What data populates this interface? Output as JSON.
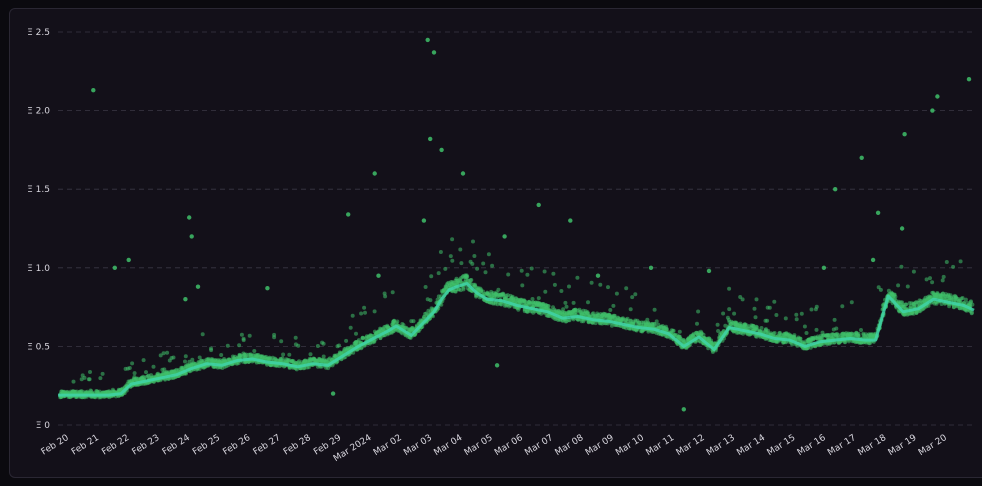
{
  "chart_data": {
    "type": "scatter",
    "title": "",
    "xlabel": "",
    "ylabel": "",
    "y_tick_labels": [
      "Ξ 0",
      "Ξ 0.5",
      "Ξ 1.0",
      "Ξ 1.5",
      "Ξ 2.0",
      "Ξ 2.5"
    ],
    "y_ticks": [
      0,
      0.5,
      1.0,
      1.5,
      2.0,
      2.5
    ],
    "ylim": [
      0,
      2.5
    ],
    "x_tick_labels": [
      "Feb 20",
      "Feb 21",
      "Feb 22",
      "Feb 23",
      "Feb 24",
      "Feb 25",
      "Feb 26",
      "Feb 27",
      "Feb 28",
      "Feb 29",
      "Mar 2024",
      "Mar 02",
      "Mar 03",
      "Mar 04",
      "Mar 05",
      "Mar 06",
      "Mar 07",
      "Mar 08",
      "Mar 09",
      "Mar 10",
      "Mar 11",
      "Mar 12",
      "Mar 13",
      "Mar 14",
      "Mar 15",
      "Mar 16",
      "Mar 17",
      "Mar 18",
      "Mar 19",
      "Mar 20"
    ],
    "x_tick_dates": [
      "2024-02-20",
      "2024-02-21",
      "2024-02-22",
      "2024-02-23",
      "2024-02-24",
      "2024-02-25",
      "2024-02-26",
      "2024-02-27",
      "2024-02-28",
      "2024-02-29",
      "2024-03-01",
      "2024-03-02",
      "2024-03-03",
      "2024-03-04",
      "2024-03-05",
      "2024-03-06",
      "2024-03-07",
      "2024-03-08",
      "2024-03-09",
      "2024-03-10",
      "2024-03-11",
      "2024-03-12",
      "2024-03-13",
      "2024-03-14",
      "2024-03-15",
      "2024-03-16",
      "2024-03-17",
      "2024-03-18",
      "2024-03-19",
      "2024-03-20"
    ],
    "xlim": [
      "2024-02-19 20:00",
      "2024-03-21 02:00"
    ],
    "grid": "horizontal dashed",
    "colors": {
      "points": "#3fbf6a",
      "trend": "#3fd3a8",
      "grid": "#3a3744",
      "background": "#131019"
    },
    "series": [
      {
        "kind": "trend",
        "x": [
          "2024-02-19 20:00",
          "2024-02-20 12:00",
          "2024-02-21 00:00",
          "2024-02-21 12:00",
          "2024-02-21 22:00",
          "2024-02-22 06:00",
          "2024-02-22 18:00",
          "2024-02-23 06:00",
          "2024-02-23 18:00",
          "2024-02-24 06:00",
          "2024-02-24 18:00",
          "2024-02-25 06:00",
          "2024-02-25 18:00",
          "2024-02-26 06:00",
          "2024-02-26 18:00",
          "2024-02-27 06:00",
          "2024-02-27 18:00",
          "2024-02-28 06:00",
          "2024-02-28 18:00",
          "2024-02-29 06:00",
          "2024-02-29 18:00",
          "2024-03-01 06:00",
          "2024-03-01 18:00",
          "2024-03-02 00:00",
          "2024-03-02 12:00",
          "2024-03-02 18:00",
          "2024-03-03 06:00",
          "2024-03-03 12:00",
          "2024-03-03 18:00",
          "2024-03-04 00:00",
          "2024-03-04 08:00",
          "2024-03-04 16:00",
          "2024-03-05 00:00",
          "2024-03-05 12:00",
          "2024-03-06 00:00",
          "2024-03-06 12:00",
          "2024-03-07 00:00",
          "2024-03-07 12:00",
          "2024-03-08 00:00",
          "2024-03-08 12:00",
          "2024-03-09 00:00",
          "2024-03-09 12:00",
          "2024-03-10 00:00",
          "2024-03-10 12:00",
          "2024-03-11 00:00",
          "2024-03-11 12:00",
          "2024-03-12 00:00",
          "2024-03-12 12:00",
          "2024-03-13 00:00",
          "2024-03-13 12:00",
          "2024-03-14 00:00",
          "2024-03-14 12:00",
          "2024-03-15 00:00",
          "2024-03-15 12:00",
          "2024-03-16 00:00",
          "2024-03-16 12:00",
          "2024-03-17 00:00",
          "2024-03-17 12:00",
          "2024-03-17 20:00",
          "2024-03-18 06:00",
          "2024-03-18 18:00",
          "2024-03-19 06:00",
          "2024-03-19 18:00",
          "2024-03-20 06:00",
          "2024-03-20 18:00",
          "2024-03-21 02:00"
        ],
        "y": [
          0.19,
          0.19,
          0.19,
          0.19,
          0.2,
          0.26,
          0.28,
          0.3,
          0.32,
          0.36,
          0.39,
          0.38,
          0.41,
          0.42,
          0.4,
          0.39,
          0.37,
          0.39,
          0.38,
          0.44,
          0.5,
          0.55,
          0.6,
          0.63,
          0.57,
          0.62,
          0.72,
          0.8,
          0.86,
          0.88,
          0.9,
          0.84,
          0.8,
          0.79,
          0.76,
          0.74,
          0.72,
          0.68,
          0.69,
          0.67,
          0.66,
          0.64,
          0.62,
          0.61,
          0.58,
          0.5,
          0.56,
          0.48,
          0.62,
          0.6,
          0.58,
          0.55,
          0.54,
          0.5,
          0.53,
          0.54,
          0.55,
          0.54,
          0.54,
          0.82,
          0.72,
          0.74,
          0.8,
          0.78,
          0.76,
          0.73
        ]
      },
      {
        "kind": "outliers",
        "x": [
          "2024-02-21 00:00",
          "2024-02-21 17:00",
          "2024-02-22 04:00",
          "2024-02-24 04:00",
          "2024-02-24 06:00",
          "2024-02-24 01:00",
          "2024-02-24 11:00",
          "2024-02-26 18:00",
          "2024-02-29 10:00",
          "2024-03-01 07:00",
          "2024-03-01 10:00",
          "2024-03-02 22:00",
          "2024-03-03 01:00",
          "2024-03-03 03:00",
          "2024-03-03 06:00",
          "2024-03-03 12:00",
          "2024-03-04 05:00",
          "2024-03-05 14:00",
          "2024-03-06 17:00",
          "2024-03-07 18:00",
          "2024-03-08 16:00",
          "2024-03-10 10:00",
          "2024-03-11 12:00",
          "2024-03-16 03:00",
          "2024-03-16 12:00",
          "2024-03-17 09:00",
          "2024-03-17 22:00",
          "2024-03-18 17:00",
          "2024-03-18 19:00",
          "2024-03-19 17:00",
          "2024-03-19 21:00",
          "2024-03-20 22:00",
          "2024-03-17 18:00",
          "2024-03-12 08:00",
          "2024-02-28 22:00",
          "2024-03-05 08:00"
        ],
        "y": [
          2.13,
          1.0,
          1.05,
          1.32,
          1.2,
          0.8,
          0.88,
          0.87,
          1.34,
          1.6,
          0.95,
          1.3,
          2.45,
          1.82,
          2.37,
          1.75,
          1.6,
          1.2,
          1.4,
          1.3,
          0.95,
          1.0,
          0.1,
          1.0,
          1.5,
          1.7,
          1.35,
          1.25,
          1.85,
          2.0,
          2.09,
          2.2,
          1.05,
          0.98,
          0.2,
          0.38
        ]
      }
    ]
  }
}
